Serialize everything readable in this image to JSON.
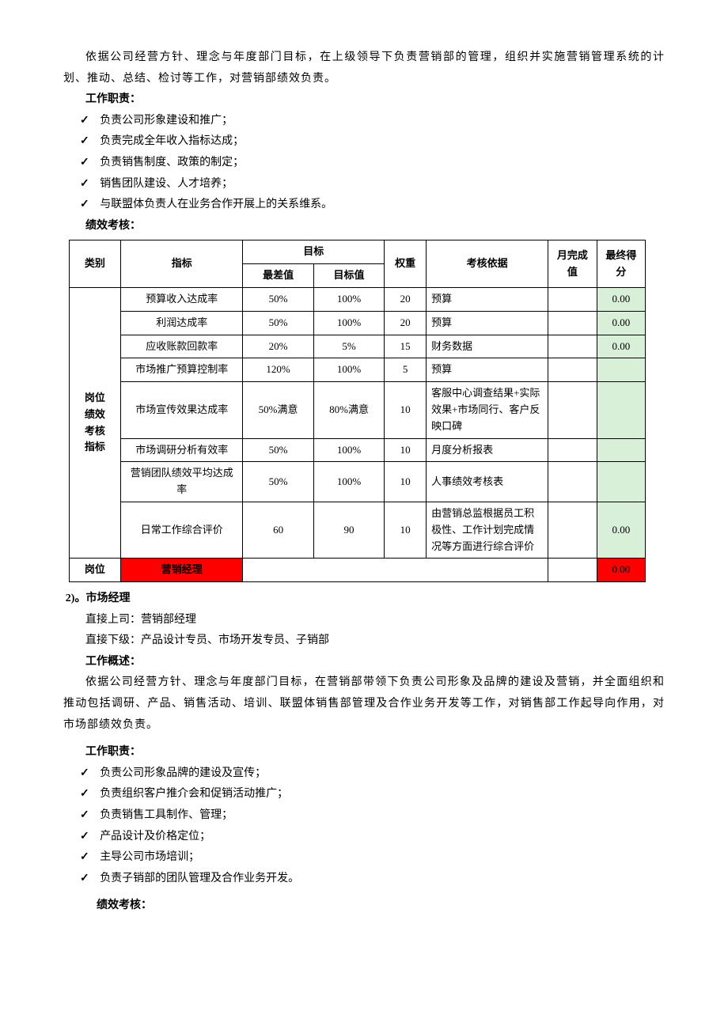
{
  "colors": {
    "green_cell": "#d8f0d8",
    "red_cell": "#ff0000",
    "border": "#000000",
    "text": "#000000",
    "background": "#ffffff"
  },
  "intro_paragraph": "依据公司经营方针、理念与年度部门目标，在上级领导下负责营销部的管理，组织并实施营销管理系统的计划、推动、总结、检讨等工作，对营销部绩效负责。",
  "responsibilities_title": "工作职责：",
  "responsibilities": [
    "负责公司形象建设和推广；",
    "负责完成全年收入指标达成；",
    "负责销售制度、政策的制定；",
    "销售团队建设、人才培养；",
    "与联盟体负责人在业务合作开展上的关系维系。"
  ],
  "kpi_title": "绩效考核：",
  "kpi_table": {
    "header": {
      "category": "类别",
      "indicator": "指标",
      "target": "目标",
      "worst": "最差值",
      "target_val": "目标值",
      "weight": "权重",
      "basis": "考核依据",
      "month_done": "月完成值",
      "final_score": "最终得分"
    },
    "category_label": "岗位绩效考核指标",
    "rows": [
      {
        "indicator": "预算收入达成率",
        "worst": "50%",
        "target": "100%",
        "weight": "20",
        "basis": "预算",
        "month": "",
        "score": "0.00",
        "score_green": true
      },
      {
        "indicator": "利润达成率",
        "worst": "50%",
        "target": "100%",
        "weight": "20",
        "basis": "预算",
        "month": "",
        "score": "0.00",
        "score_green": true
      },
      {
        "indicator": "应收账款回款率",
        "worst": "20%",
        "target": "5%",
        "weight": "15",
        "basis": "财务数据",
        "month": "",
        "score": "0.00",
        "score_green": true
      },
      {
        "indicator": "市场推广预算控制率",
        "worst": "120%",
        "target": "100%",
        "weight": "5",
        "basis": "预算",
        "month": "",
        "score": "",
        "score_green": true
      },
      {
        "indicator": "市场宣传效果达成率",
        "worst": "50%满意",
        "target": "80%满意",
        "weight": "10",
        "basis": "客服中心调查结果+实际效果+市场同行、客户反映口碑",
        "month": "",
        "score": "",
        "score_green": true
      },
      {
        "indicator": "市场调研分析有效率",
        "worst": "50%",
        "target": "100%",
        "weight": "10",
        "basis": "月度分析报表",
        "month": "",
        "score": "",
        "score_green": true
      },
      {
        "indicator": "营销团队绩效平均达成率",
        "worst": "50%",
        "target": "100%",
        "weight": "10",
        "basis": "人事绩效考核表",
        "month": "",
        "score": "",
        "score_green": true
      },
      {
        "indicator": "日常工作综合评价",
        "worst": "60",
        "target": "90",
        "weight": "10",
        "basis": "由营销总监根据员工积极性、工作计划完成情况等方面进行综合评价",
        "month": "",
        "score": "0.00",
        "score_green": true
      }
    ],
    "footer": {
      "post_label": "岗位",
      "post_value": "营销经理",
      "final_score": "0.00"
    }
  },
  "section2": {
    "num": "2)。",
    "title": "市场经理",
    "supervisor_label": "直接上司：",
    "supervisor": "营销部经理",
    "subordinate_label": "直接下级：",
    "subordinate": "产品设计专员、市场开发专员、子销部",
    "overview_title": "工作概述：",
    "overview": "依据公司经营方针、理念与年度部门目标，在营销部带领下负责公司形象及品牌的建设及营销，并全面组织和推动包括调研、产品、销售活动、培训、联盟体销售部管理及合作业务开发等工作，对销售部工作起导向作用，对市场部绩效负责。",
    "responsibilities_title": "工作职责：",
    "responsibilities": [
      "负责公司形象品牌的建设及宣传；",
      "负责组织客户推介会和促销活动推广；",
      "负责销售工具制作、管理；",
      "产品设计及价格定位；",
      "主导公司市场培训；",
      "负责子销部的团队管理及合作业务开发。"
    ],
    "kpi_title": "绩效考核："
  }
}
